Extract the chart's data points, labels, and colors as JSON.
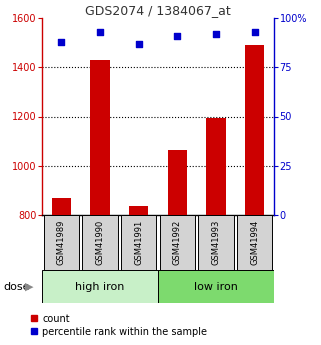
{
  "title": "GDS2074 / 1384067_at",
  "categories": [
    "GSM41989",
    "GSM41990",
    "GSM41991",
    "GSM41992",
    "GSM41993",
    "GSM41994"
  ],
  "bar_values": [
    870,
    1430,
    835,
    1065,
    1195,
    1490
  ],
  "bar_base": 800,
  "scatter_values": [
    88,
    93,
    87,
    91,
    92,
    93
  ],
  "left_ylim": [
    800,
    1600
  ],
  "left_yticks": [
    800,
    1000,
    1200,
    1400,
    1600
  ],
  "right_ylim": [
    0,
    100
  ],
  "right_yticks": [
    0,
    25,
    50,
    75,
    100
  ],
  "right_yticklabels": [
    "0",
    "25",
    "50",
    "75",
    "100%"
  ],
  "bar_color": "#cc0000",
  "scatter_color": "#0000cc",
  "group1_label": "high iron",
  "group2_label": "low iron",
  "group1_indices": [
    0,
    1,
    2
  ],
  "group2_indices": [
    3,
    4,
    5
  ],
  "dose_label": "dose",
  "legend_count": "count",
  "legend_percentile": "percentile rank within the sample",
  "light_green": "#7dda6e",
  "lighter_green": "#c8f0c8",
  "label_bg": "#d3d3d3",
  "dotted_line_color": "#000000",
  "title_color": "#333333"
}
